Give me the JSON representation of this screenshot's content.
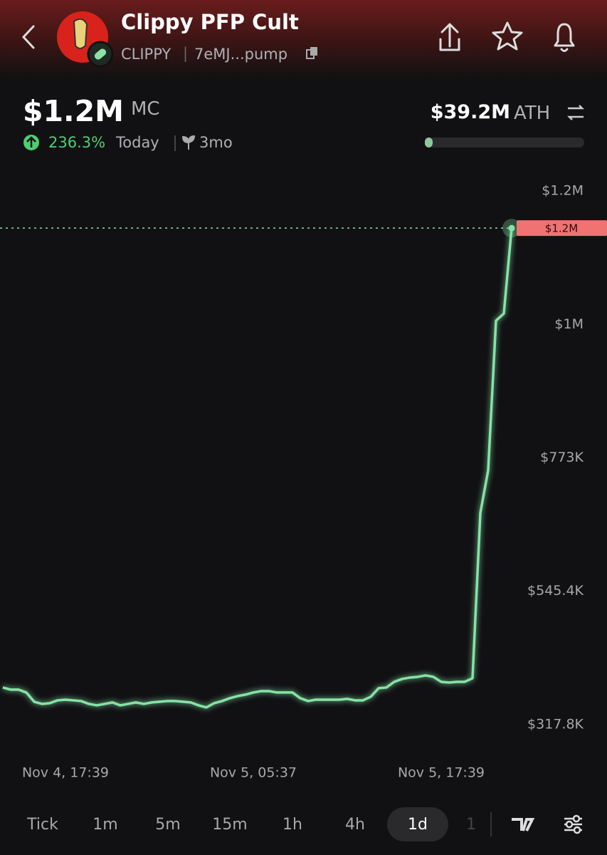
{
  "header": {
    "title": "Clippy PFP Cult",
    "ticker": "CLIPPY",
    "address": "7eMJ...pump"
  },
  "stats": {
    "market_cap": "$1.2M",
    "market_cap_label": "MC",
    "change": "236.3%",
    "change_period": "Today",
    "age": "3mo",
    "ath": "$39.2M",
    "ath_label": "ATH"
  },
  "timeframes": [
    "Tick",
    "1m",
    "5m",
    "15m",
    "1h",
    "4h",
    "1d",
    "1"
  ],
  "selected_timeframe": 6,
  "chart_data": {
    "type": "line",
    "categories": [
      null,
      null,
      null,
      null,
      null,
      null,
      null,
      null,
      "Nov 4, 17:39",
      null,
      null,
      null,
      null,
      null,
      null,
      null,
      null,
      null,
      null,
      null,
      null,
      null,
      null,
      null,
      null,
      null,
      null,
      null,
      null,
      null,
      null,
      null,
      "Nov 5, 05:37",
      null,
      null,
      null,
      null,
      null,
      null,
      null,
      null,
      null,
      null,
      null,
      null,
      null,
      null,
      null,
      null,
      null,
      null,
      null,
      null,
      null,
      null,
      null,
      "Nov 5, 17:39",
      null,
      null,
      null,
      null,
      null,
      null,
      null,
      null,
      null
    ],
    "series": [
      {
        "color": "#86e3a6",
        "values": [
          381000,
          377400,
          377400,
          372500,
          356700,
          353000,
          354300,
          359100,
          360300,
          359100,
          357900,
          353000,
          350600,
          353000,
          355500,
          350600,
          353000,
          355500,
          353000,
          355500,
          356700,
          357900,
          357900,
          356700,
          355500,
          350600,
          347000,
          354300,
          357900,
          362800,
          366400,
          368900,
          372500,
          374900,
          374900,
          372500,
          372500,
          372500,
          362800,
          357900,
          360300,
          360300,
          360300,
          360300,
          361600,
          359100,
          359100,
          365200,
          379800,
          381000,
          390700,
          395600,
          398000,
          399200,
          401700,
          399200,
          390700,
          389500,
          390700,
          390700,
          396800,
          678800,
          751700,
          1007000,
          1019100,
          1165000
        ],
        "value_labels": [
          null,
          null,
          null,
          null,
          null,
          null,
          null,
          null,
          null,
          null,
          null,
          null,
          null,
          null,
          null,
          null,
          null,
          null,
          null,
          null,
          null,
          null,
          null,
          null,
          null,
          null,
          null,
          null,
          null,
          null,
          null,
          null,
          null,
          null,
          null,
          null,
          null,
          null,
          null,
          null,
          null,
          null,
          null,
          null,
          null,
          null,
          null,
          null,
          null,
          null,
          null,
          null,
          null,
          null,
          null,
          null,
          null,
          null,
          null,
          null,
          null,
          null,
          null,
          null,
          null,
          "$1.2M"
        ]
      }
    ],
    "ylim": [
      280000,
      1260000
    ],
    "yticks": [
      {
        "value": 317800,
        "label": "$317.8K"
      },
      {
        "value": 545400,
        "label": "$545.4K"
      },
      {
        "value": 773000,
        "label": "$773K"
      },
      {
        "value": 1000600,
        "label": "$1M"
      },
      {
        "value": 1228200,
        "label": "$1.2M"
      }
    ],
    "grid": false
  }
}
